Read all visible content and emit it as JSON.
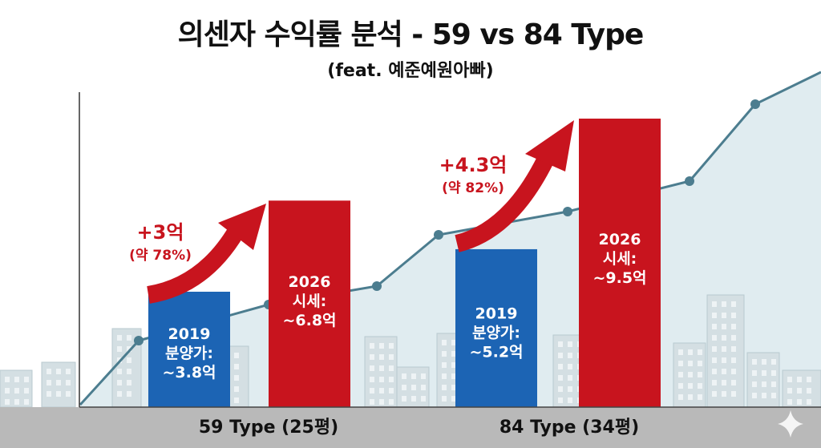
{
  "title": "의센자  수익률 분석 - 59 vs 84 Type",
  "subtitle": "(feat. 예준예원아빠)",
  "colors": {
    "blue": "#1c64b4",
    "red": "#c8141e",
    "trend": "#4c7d8f",
    "sky": "#c7dde4",
    "buildings": "#d4dfe3",
    "ground": "#b9b9b9"
  },
  "chart_data": {
    "type": "bar",
    "categories": [
      "59 Type (25평)",
      "84 Type (34평)"
    ],
    "series": [
      {
        "name": "2019",
        "values": [
          3.8,
          5.2
        ]
      },
      {
        "name": "2026",
        "values": [
          6.8,
          9.5
        ]
      }
    ],
    "bar_labels": [
      [
        "2019",
        "분양가:",
        "~3.8억"
      ],
      [
        "2026",
        "시세:",
        "~6.8억"
      ],
      [
        "2019",
        "분양가:",
        "~5.2억"
      ],
      [
        "2026",
        "시세:",
        "~9.5억"
      ]
    ],
    "annotations": [
      {
        "gain": "+3억",
        "pct": "(약 78%)"
      },
      {
        "gain": "+4.3억",
        "pct": "(약 82%)"
      }
    ],
    "title": "의센자  수익률 분석 - 59 vs 84 Type",
    "xlabel": "",
    "ylabel": "",
    "ylim": [
      0,
      10.5
    ],
    "grid": false
  }
}
